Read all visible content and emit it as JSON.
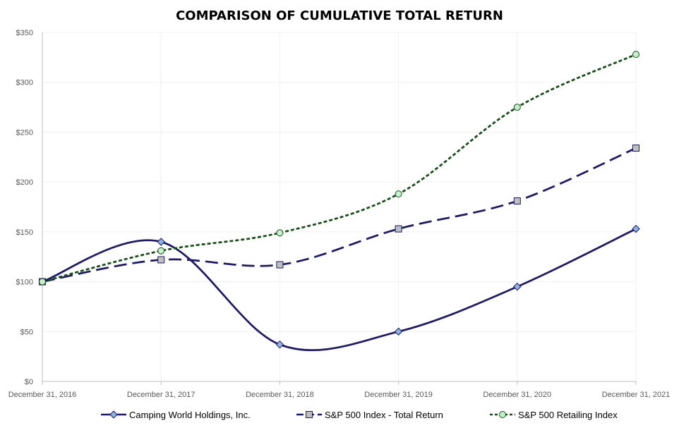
{
  "chart_data": {
    "type": "line",
    "title": "COMPARISON OF CUMULATIVE TOTAL RETURN",
    "categories": [
      "December 31, 2016",
      "December 31, 2017",
      "December 31, 2018",
      "December 31, 2019",
      "December 31, 2020",
      "December 31, 2021"
    ],
    "y_ticks": [
      "$0",
      "$50",
      "$100",
      "$150",
      "$200",
      "$250",
      "$300",
      "$350"
    ],
    "ylim": [
      0,
      350
    ],
    "grid": true,
    "legend_position": "bottom",
    "series": [
      {
        "name": "Camping World Holdings, Inc.",
        "values": [
          100,
          140,
          37,
          50,
          95,
          153
        ],
        "color": "#1f1a66",
        "marker": "diamond",
        "line": "solid",
        "marker_fill": "#8eb4e3"
      },
      {
        "name": "S&P 500 Index - Total Return",
        "values": [
          100,
          122,
          117,
          153,
          181,
          234
        ],
        "color": "#1f1a66",
        "marker": "square",
        "line": "long-dash",
        "marker_fill": "#bfbfbf"
      },
      {
        "name": "S&P 500 Retailing Index",
        "values": [
          100,
          131,
          149,
          188,
          275,
          328
        ],
        "color": "#1a4d1a",
        "marker": "circle",
        "line": "short-dash",
        "marker_fill": "#c6efce"
      }
    ]
  }
}
